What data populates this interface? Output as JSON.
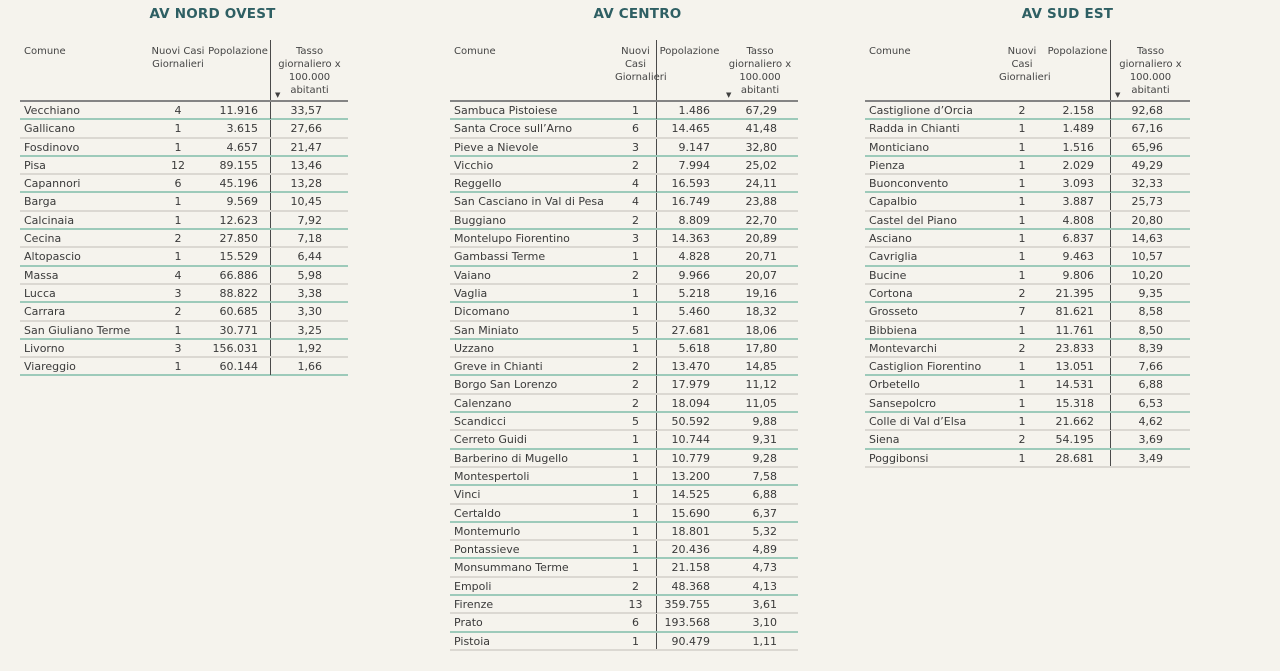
{
  "colors": {
    "background": "#f5f3ed",
    "title": "#2e5f63",
    "text": "#3a3a3a",
    "header-text": "#454545",
    "header-rule": "#848484",
    "divider": "#4a4a4a",
    "line-teal": "#9dcaba",
    "line-gray": "#dbd8d2"
  },
  "sort_icon": "▼",
  "chart_data": [
    {
      "type": "table",
      "title": "AV NORD OVEST",
      "columns": [
        "Comune",
        "Nuovi Casi Giornalieri",
        "Popolazione",
        "Tasso giornaliero x 100.000 abitanti"
      ],
      "sorted_by": "Tasso giornaliero x 100.000 abitanti",
      "sort_direction": "descending",
      "rows": [
        [
          "Vecchiano",
          "4",
          "11.916",
          "33,57"
        ],
        [
          "Gallicano",
          "1",
          "3.615",
          "27,66"
        ],
        [
          "Fosdinovo",
          "1",
          "4.657",
          "21,47"
        ],
        [
          "Pisa",
          "12",
          "89.155",
          "13,46"
        ],
        [
          "Capannori",
          "6",
          "45.196",
          "13,28"
        ],
        [
          "Barga",
          "1",
          "9.569",
          "10,45"
        ],
        [
          "Calcinaia",
          "1",
          "12.623",
          "7,92"
        ],
        [
          "Cecina",
          "2",
          "27.850",
          "7,18"
        ],
        [
          "Altopascio",
          "1",
          "15.529",
          "6,44"
        ],
        [
          "Massa",
          "4",
          "66.886",
          "5,98"
        ],
        [
          "Lucca",
          "3",
          "88.822",
          "3,38"
        ],
        [
          "Carrara",
          "2",
          "60.685",
          "3,30"
        ],
        [
          "San Giuliano Terme",
          "1",
          "30.771",
          "3,25"
        ],
        [
          "Livorno",
          "3",
          "156.031",
          "1,92"
        ],
        [
          "Viareggio",
          "1",
          "60.144",
          "1,66"
        ]
      ]
    },
    {
      "type": "table",
      "title": "AV CENTRO",
      "columns": [
        "Comune",
        "Nuovi Casi Giornalieri",
        "Popolazione",
        "Tasso giornaliero x 100.000 abitanti"
      ],
      "sorted_by": "Tasso giornaliero x 100.000 abitanti",
      "sort_direction": "descending",
      "rows": [
        [
          "Sambuca Pistoiese",
          "1",
          "1.486",
          "67,29"
        ],
        [
          "Santa Croce sull’Arno",
          "6",
          "14.465",
          "41,48"
        ],
        [
          "Pieve a Nievole",
          "3",
          "9.147",
          "32,80"
        ],
        [
          "Vicchio",
          "2",
          "7.994",
          "25,02"
        ],
        [
          "Reggello",
          "4",
          "16.593",
          "24,11"
        ],
        [
          "San Casciano in Val di Pesa",
          "4",
          "16.749",
          "23,88"
        ],
        [
          "Buggiano",
          "2",
          "8.809",
          "22,70"
        ],
        [
          "Montelupo Fiorentino",
          "3",
          "14.363",
          "20,89"
        ],
        [
          "Gambassi Terme",
          "1",
          "4.828",
          "20,71"
        ],
        [
          "Vaiano",
          "2",
          "9.966",
          "20,07"
        ],
        [
          "Vaglia",
          "1",
          "5.218",
          "19,16"
        ],
        [
          "Dicomano",
          "1",
          "5.460",
          "18,32"
        ],
        [
          "San Miniato",
          "5",
          "27.681",
          "18,06"
        ],
        [
          "Uzzano",
          "1",
          "5.618",
          "17,80"
        ],
        [
          "Greve in Chianti",
          "2",
          "13.470",
          "14,85"
        ],
        [
          "Borgo San Lorenzo",
          "2",
          "17.979",
          "11,12"
        ],
        [
          "Calenzano",
          "2",
          "18.094",
          "11,05"
        ],
        [
          "Scandicci",
          "5",
          "50.592",
          "9,88"
        ],
        [
          "Cerreto Guidi",
          "1",
          "10.744",
          "9,31"
        ],
        [
          "Barberino di Mugello",
          "1",
          "10.779",
          "9,28"
        ],
        [
          "Montespertoli",
          "1",
          "13.200",
          "7,58"
        ],
        [
          "Vinci",
          "1",
          "14.525",
          "6,88"
        ],
        [
          "Certaldo",
          "1",
          "15.690",
          "6,37"
        ],
        [
          "Montemurlo",
          "1",
          "18.801",
          "5,32"
        ],
        [
          "Pontassieve",
          "1",
          "20.436",
          "4,89"
        ],
        [
          "Monsummano Terme",
          "1",
          "21.158",
          "4,73"
        ],
        [
          "Empoli",
          "2",
          "48.368",
          "4,13"
        ],
        [
          "Firenze",
          "13",
          "359.755",
          "3,61"
        ],
        [
          "Prato",
          "6",
          "193.568",
          "3,10"
        ],
        [
          "Pistoia",
          "1",
          "90.479",
          "1,11"
        ]
      ]
    },
    {
      "type": "table",
      "title": "AV SUD EST",
      "columns": [
        "Comune",
        "Nuovi Casi Giornalieri",
        "Popolazione",
        "Tasso giornaliero x 100.000 abitanti"
      ],
      "sorted_by": "Tasso giornaliero x 100.000 abitanti",
      "sort_direction": "descending",
      "rows": [
        [
          "Castiglione d’Orcia",
          "2",
          "2.158",
          "92,68"
        ],
        [
          "Radda in Chianti",
          "1",
          "1.489",
          "67,16"
        ],
        [
          "Monticiano",
          "1",
          "1.516",
          "65,96"
        ],
        [
          "Pienza",
          "1",
          "2.029",
          "49,29"
        ],
        [
          "Buonconvento",
          "1",
          "3.093",
          "32,33"
        ],
        [
          "Capalbio",
          "1",
          "3.887",
          "25,73"
        ],
        [
          "Castel del Piano",
          "1",
          "4.808",
          "20,80"
        ],
        [
          "Asciano",
          "1",
          "6.837",
          "14,63"
        ],
        [
          "Cavriglia",
          "1",
          "9.463",
          "10,57"
        ],
        [
          "Bucine",
          "1",
          "9.806",
          "10,20"
        ],
        [
          "Cortona",
          "2",
          "21.395",
          "9,35"
        ],
        [
          "Grosseto",
          "7",
          "81.621",
          "8,58"
        ],
        [
          "Bibbiena",
          "1",
          "11.761",
          "8,50"
        ],
        [
          "Montevarchi",
          "2",
          "23.833",
          "8,39"
        ],
        [
          "Castiglion Fiorentino",
          "1",
          "13.051",
          "7,66"
        ],
        [
          "Orbetello",
          "1",
          "14.531",
          "6,88"
        ],
        [
          "Sansepolcro",
          "1",
          "15.318",
          "6,53"
        ],
        [
          "Colle di Val d’Elsa",
          "1",
          "21.662",
          "4,62"
        ],
        [
          "Siena",
          "2",
          "54.195",
          "3,69"
        ],
        [
          "Poggibonsi",
          "1",
          "28.681",
          "3,49"
        ]
      ]
    }
  ]
}
